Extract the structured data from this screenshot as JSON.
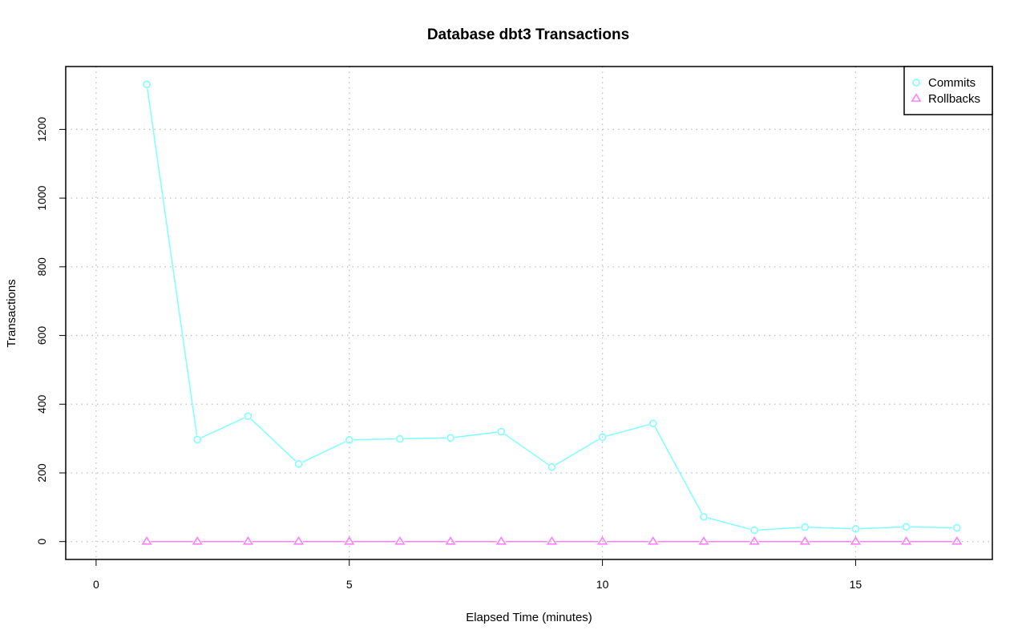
{
  "colors": {
    "commits": "#7fffff",
    "rollbacks": "#ff80ff",
    "grid": "#bebebe",
    "axis": "#000000"
  },
  "chart_data": {
    "type": "line",
    "title": "Database dbt3 Transactions",
    "xlabel": "Elapsed Time (minutes)",
    "ylabel": "Transactions",
    "xlim": [
      -0.6,
      17.7
    ],
    "ylim": [
      -52,
      1383
    ],
    "x_ticks": [
      0,
      5,
      10,
      15
    ],
    "y_ticks": [
      0,
      200,
      400,
      600,
      800,
      1000,
      1200
    ],
    "grid": true,
    "legend_position": "top-right",
    "x": [
      1,
      2,
      3,
      4,
      5,
      6,
      7,
      8,
      9,
      10,
      11,
      12,
      13,
      14,
      15,
      16,
      17
    ],
    "series": [
      {
        "name": "Commits",
        "marker": "circle",
        "color": "#7fffff",
        "values": [
          1331,
          297,
          365,
          226,
          296,
          299,
          302,
          320,
          217,
          304,
          344,
          72,
          33,
          42,
          37,
          43,
          40
        ]
      },
      {
        "name": "Rollbacks",
        "marker": "triangle",
        "color": "#ff80ff",
        "values": [
          0,
          0,
          0,
          0,
          0,
          0,
          0,
          0,
          0,
          0,
          0,
          0,
          0,
          0,
          0,
          0,
          0
        ]
      }
    ]
  }
}
